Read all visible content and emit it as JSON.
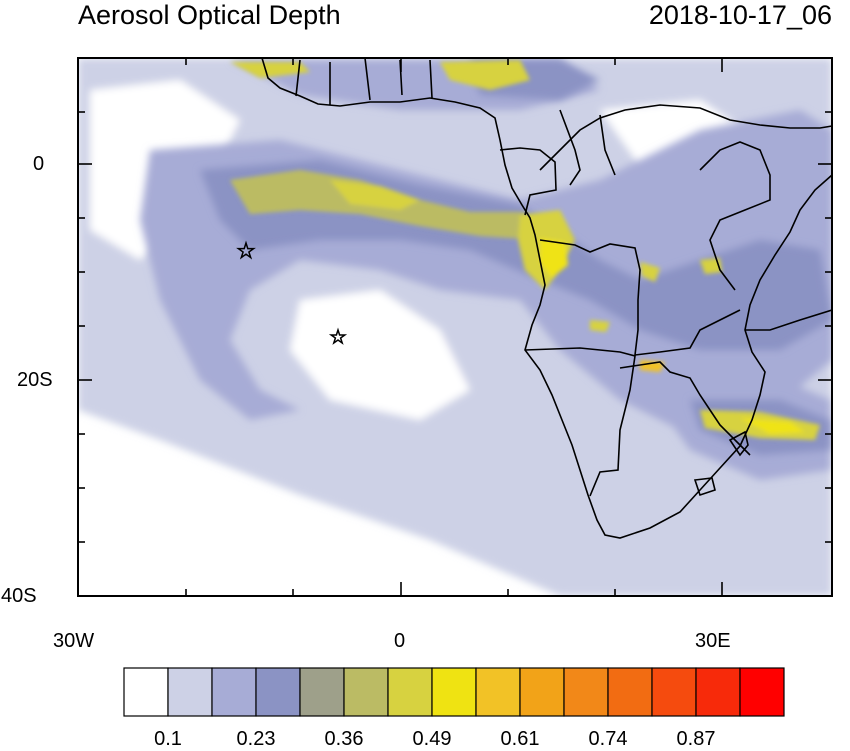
{
  "title": "Aerosol Optical Depth",
  "datetime": "2018-10-17_06",
  "lat_labels": [
    "0",
    "20S",
    "40S"
  ],
  "lon_labels": [
    "30W",
    "0",
    "30E"
  ],
  "colorbar": {
    "colors": [
      "#ffffff",
      "#cdd1e6",
      "#a7acd6",
      "#8b93c4",
      "#9ea08a",
      "#bbbb64",
      "#d7d240",
      "#efe312",
      "#f2c226",
      "#f2a318",
      "#f28818",
      "#f26c12",
      "#f54b0e",
      "#f72a0a",
      "#ff0000"
    ],
    "labels": [
      "0.1",
      "0.23",
      "0.36",
      "0.49",
      "0.61",
      "0.74",
      "0.87"
    ]
  },
  "markers": [
    "star",
    "star"
  ]
}
